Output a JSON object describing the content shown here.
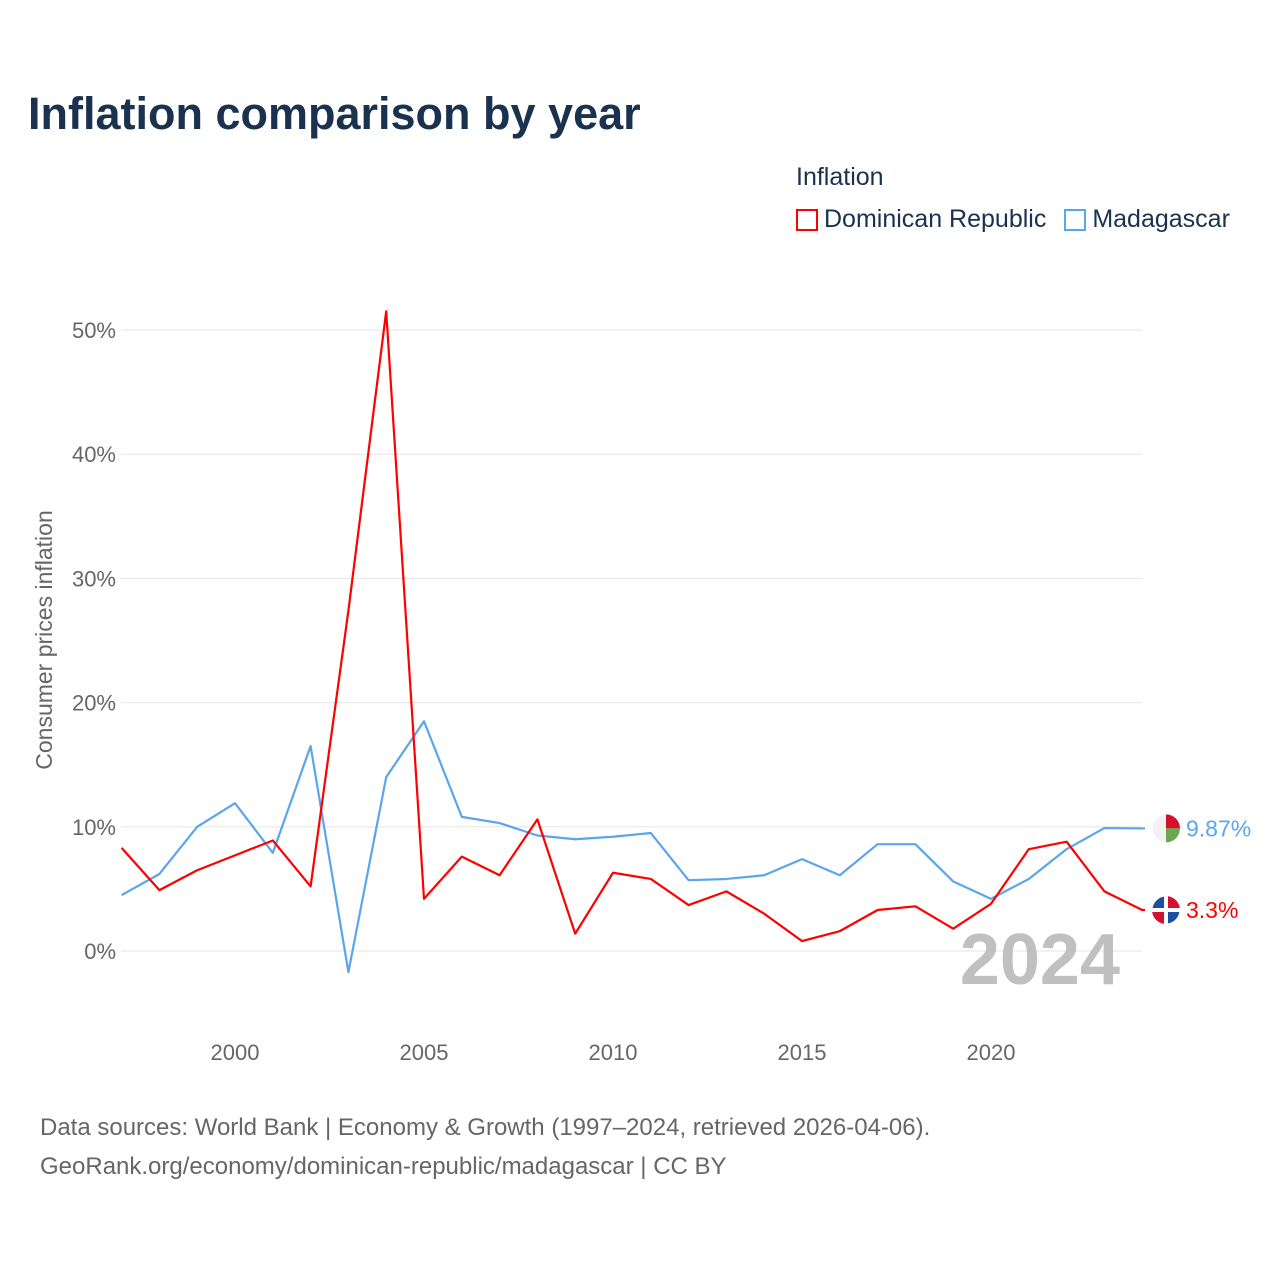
{
  "chart_data": {
    "type": "line",
    "title": "Inflation comparison by year",
    "legend_title": "Inflation",
    "legend_position": "top-right",
    "ylabel": "Consumer prices inflation",
    "xlabel": "",
    "ylim": [
      -5,
      52
    ],
    "xlim": [
      1997,
      2024
    ],
    "yticks": [
      0,
      10,
      20,
      30,
      40,
      50
    ],
    "ytick_labels": [
      "0%",
      "10%",
      "20%",
      "30%",
      "40%",
      "50%"
    ],
    "xticks": [
      2000,
      2005,
      2010,
      2015,
      2020
    ],
    "xtick_labels": [
      "2000",
      "2005",
      "2010",
      "2015",
      "2020"
    ],
    "grid": true,
    "x": [
      1997,
      1998,
      1999,
      2000,
      2001,
      2002,
      2003,
      2004,
      2005,
      2006,
      2007,
      2008,
      2009,
      2010,
      2011,
      2012,
      2013,
      2014,
      2015,
      2016,
      2017,
      2018,
      2019,
      2020,
      2021,
      2022,
      2023,
      2024
    ],
    "series": [
      {
        "name": "Dominican Republic",
        "color": "#ff0000",
        "end_label": "3.3%",
        "values": [
          8.3,
          4.9,
          6.5,
          7.7,
          8.9,
          5.2,
          27.4,
          51.5,
          4.2,
          7.6,
          6.1,
          10.6,
          1.4,
          6.3,
          5.8,
          3.7,
          4.8,
          3.0,
          0.8,
          1.6,
          3.3,
          3.6,
          1.8,
          3.8,
          8.2,
          8.8,
          4.8,
          3.3
        ]
      },
      {
        "name": "Madagascar",
        "color": "#5aa5ec",
        "end_label": "9.87%",
        "values": [
          4.5,
          6.2,
          10.0,
          11.9,
          7.9,
          16.5,
          -1.7,
          14.0,
          18.5,
          10.8,
          10.3,
          9.3,
          9.0,
          9.2,
          9.5,
          5.7,
          5.8,
          6.1,
          7.4,
          6.1,
          8.6,
          8.6,
          5.6,
          4.2,
          5.8,
          8.2,
          9.9,
          9.87
        ]
      }
    ],
    "year_watermark": "2024"
  },
  "footer": {
    "line1": "Data sources: World Bank | Economy & Growth (1997–2024, retrieved 2026-04-06).",
    "line2": "GeoRank.org/economy/dominican-republic/madagascar | CC BY"
  }
}
